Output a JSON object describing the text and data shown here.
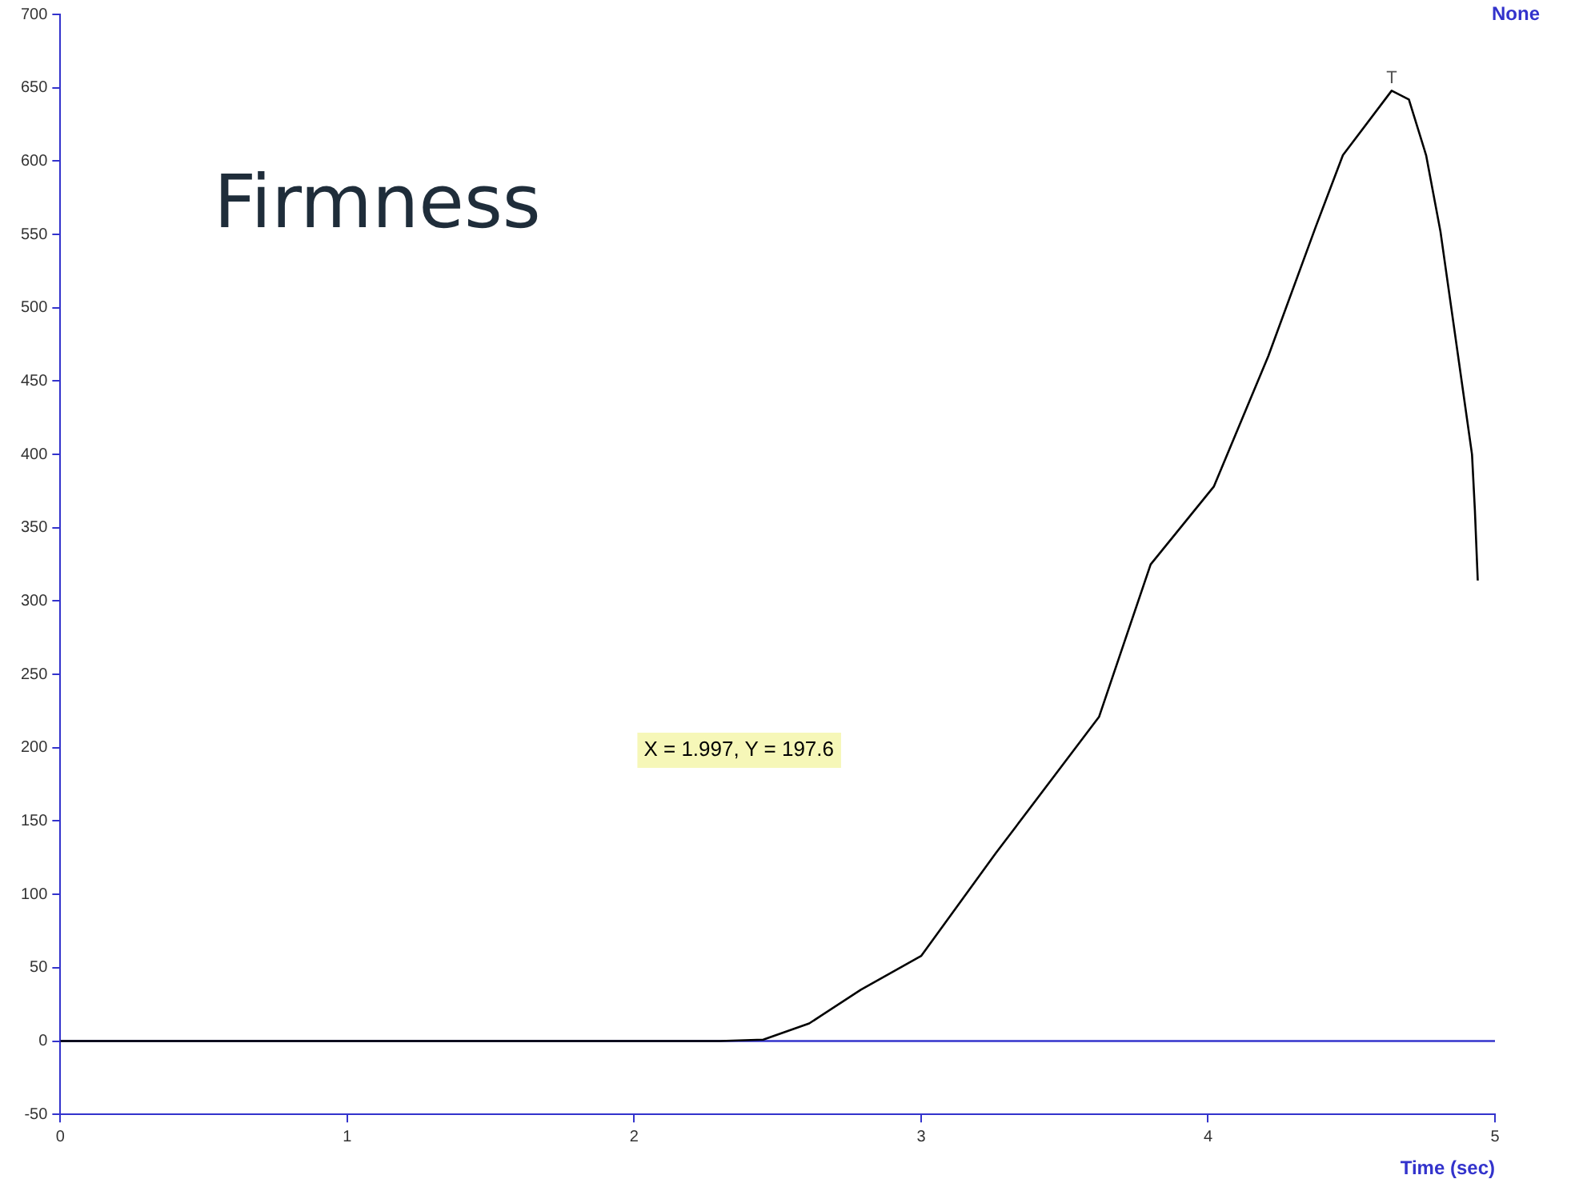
{
  "chart_data": {
    "type": "line",
    "title": "Firmness",
    "xlabel": "Time (sec)",
    "x": [
      0,
      0.5,
      1,
      1.5,
      2,
      2.3,
      2.45,
      2.61,
      2.79,
      3.0,
      3.26,
      3.62,
      3.8,
      4.02,
      4.21,
      4.375,
      4.47,
      4.64,
      4.7,
      4.76,
      4.81,
      4.86,
      4.92,
      4.93,
      4.94
    ],
    "series": [
      {
        "color": "#000000",
        "values": [
          0,
          0,
          0,
          0,
          0,
          0,
          1,
          12,
          35,
          58,
          128,
          221,
          325,
          378,
          467,
          555,
          604,
          648,
          642,
          604,
          552,
          483,
          400,
          362,
          314
        ]
      }
    ],
    "xlim": [
      0,
      5
    ],
    "xticks": [
      0,
      1,
      2,
      3,
      4,
      5
    ],
    "ylim": [
      -50,
      700
    ],
    "yticks": [
      -50,
      0,
      50,
      100,
      150,
      200,
      250,
      300,
      350,
      400,
      450,
      500,
      550,
      600,
      650,
      700
    ],
    "ref_lines": [
      {
        "axis": "y",
        "value": 0,
        "color": "#3333cc"
      }
    ],
    "grid": false,
    "legend": false,
    "marker": "none",
    "line_style": "solid",
    "annotations": [
      "None",
      "X = 1.997, Y = 197.6",
      {
        "text": "T",
        "x": 4.64,
        "y": 648
      }
    ]
  }
}
